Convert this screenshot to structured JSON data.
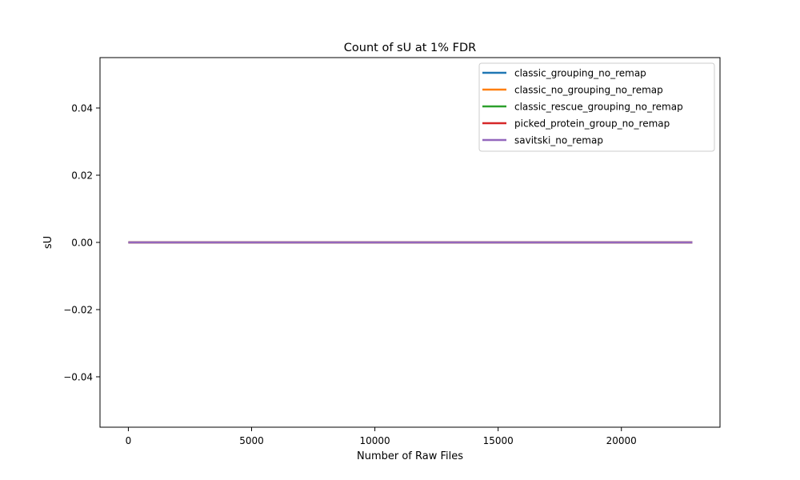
{
  "chart_data": {
    "type": "line",
    "title": "Count of sU at 1% FDR",
    "xlabel": "Number of Raw Files",
    "ylabel": "sU",
    "xlim": [
      -1150,
      24000
    ],
    "ylim": [
      -0.055,
      0.055
    ],
    "xticks": [
      0,
      5000,
      10000,
      15000,
      20000
    ],
    "xtick_labels": [
      "0",
      "5000",
      "10000",
      "15000",
      "20000"
    ],
    "yticks": [
      0.04,
      0.02,
      0.0,
      -0.02,
      -0.04
    ],
    "ytick_labels": [
      "0.04",
      "0.02",
      "0.00",
      "−0.02",
      "−0.04"
    ],
    "grid": false,
    "legend_position": "top-right",
    "x": [
      0,
      22880
    ],
    "series": [
      {
        "name": "classic_grouping_no_remap",
        "color": "#1f77b4",
        "values": [
          0,
          0
        ]
      },
      {
        "name": "classic_no_grouping_no_remap",
        "color": "#ff7f0e",
        "values": [
          0,
          0
        ]
      },
      {
        "name": "classic_rescue_grouping_no_remap",
        "color": "#2ca02c",
        "values": [
          0,
          0
        ]
      },
      {
        "name": "picked_protein_group_no_remap",
        "color": "#d62728",
        "values": [
          0,
          0
        ]
      },
      {
        "name": "savitski_no_remap",
        "color": "#9467bd",
        "values": [
          0,
          0
        ]
      }
    ]
  }
}
